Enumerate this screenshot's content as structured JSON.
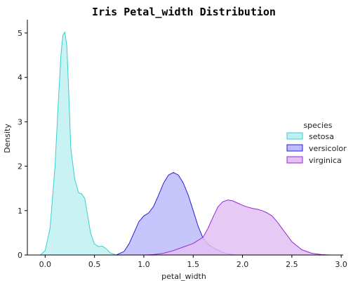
{
  "chart_data": {
    "type": "area",
    "title": "Iris Petal_width Distribution",
    "xlabel": "petal_width",
    "ylabel": "Density",
    "xlim": [
      -0.18,
      3.02
    ],
    "ylim": [
      0,
      5.3
    ],
    "xticks": [
      0.0,
      0.5,
      1.0,
      1.5,
      2.0,
      2.5,
      3.0
    ],
    "xtick_labels": [
      "0.0",
      "0.5",
      "1.0",
      "1.5",
      "2.0",
      "2.5",
      "3.0"
    ],
    "yticks": [
      0,
      1,
      2,
      3,
      4,
      5
    ],
    "ytick_labels": [
      "0",
      "1",
      "2",
      "3",
      "4",
      "5"
    ],
    "grid": false,
    "legend": {
      "title": "species",
      "placement": "right"
    },
    "series": [
      {
        "name": "setosa",
        "line_color": "#3ccfcf",
        "fill_color": "#bff0f0",
        "x": [
          -0.05,
          0.0,
          0.05,
          0.1,
          0.13,
          0.16,
          0.18,
          0.2,
          0.22,
          0.24,
          0.26,
          0.3,
          0.34,
          0.37,
          0.4,
          0.43,
          0.46,
          0.5,
          0.54,
          0.58,
          0.62,
          0.66,
          0.72
        ],
        "y": [
          0.0,
          0.1,
          0.6,
          2.0,
          3.3,
          4.5,
          4.95,
          5.02,
          4.7,
          3.6,
          2.4,
          1.7,
          1.4,
          1.38,
          1.28,
          0.9,
          0.5,
          0.25,
          0.19,
          0.2,
          0.14,
          0.05,
          0.0
        ]
      },
      {
        "name": "versicolor",
        "line_color": "#2b1ed6",
        "fill_color": "#bdbcfc",
        "x": [
          0.72,
          0.8,
          0.85,
          0.9,
          0.95,
          1.0,
          1.05,
          1.1,
          1.15,
          1.2,
          1.25,
          1.3,
          1.35,
          1.4,
          1.45,
          1.5,
          1.55,
          1.6,
          1.65,
          1.7,
          1.75,
          1.8,
          1.85,
          1.9,
          1.95,
          2.0
        ],
        "y": [
          0.0,
          0.08,
          0.25,
          0.5,
          0.75,
          0.88,
          0.95,
          1.1,
          1.35,
          1.62,
          1.8,
          1.86,
          1.8,
          1.62,
          1.35,
          1.0,
          0.65,
          0.38,
          0.25,
          0.17,
          0.11,
          0.06,
          0.03,
          0.01,
          0.0,
          0.0
        ]
      },
      {
        "name": "virginica",
        "line_color": "#9b28d4",
        "fill_color": "#e3bff3",
        "x": [
          1.0,
          1.1,
          1.2,
          1.3,
          1.4,
          1.5,
          1.6,
          1.65,
          1.7,
          1.75,
          1.8,
          1.85,
          1.9,
          1.95,
          2.0,
          2.05,
          2.1,
          2.15,
          2.2,
          2.25,
          2.3,
          2.35,
          2.4,
          2.5,
          2.6,
          2.7,
          2.8,
          2.88
        ],
        "y": [
          0.0,
          0.01,
          0.04,
          0.1,
          0.18,
          0.26,
          0.4,
          0.6,
          0.85,
          1.08,
          1.2,
          1.24,
          1.22,
          1.17,
          1.12,
          1.08,
          1.05,
          1.03,
          1.0,
          0.95,
          0.88,
          0.75,
          0.6,
          0.3,
          0.12,
          0.04,
          0.01,
          0.0
        ]
      }
    ]
  }
}
